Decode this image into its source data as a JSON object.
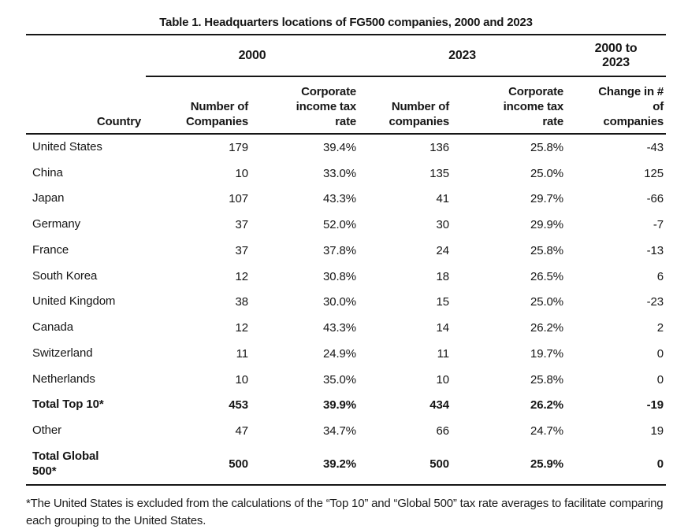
{
  "title": "Table 1. Headquarters locations of FG500 companies, 2000 and 2023",
  "table": {
    "year_groups": [
      {
        "label": "2000"
      },
      {
        "label": "2023"
      },
      {
        "label": "2000 to\n2023"
      }
    ],
    "columns": [
      "Country",
      "Number of\nCompanies",
      "Corporate\nincome tax\nrate",
      "Number of\ncompanies",
      "Corporate\nincome tax\nrate",
      "Change in #\nof\ncompanies"
    ],
    "rows": [
      {
        "country": "United States",
        "companies_2000": "179",
        "tax_2000": "39.4%",
        "companies_2023": "136",
        "tax_2023": "25.8%",
        "change": "-43",
        "bold": false
      },
      {
        "country": "China",
        "companies_2000": "10",
        "tax_2000": "33.0%",
        "companies_2023": "135",
        "tax_2023": "25.0%",
        "change": "125",
        "bold": false
      },
      {
        "country": "Japan",
        "companies_2000": "107",
        "tax_2000": "43.3%",
        "companies_2023": "41",
        "tax_2023": "29.7%",
        "change": "-66",
        "bold": false
      },
      {
        "country": "Germany",
        "companies_2000": "37",
        "tax_2000": "52.0%",
        "companies_2023": "30",
        "tax_2023": "29.9%",
        "change": "-7",
        "bold": false
      },
      {
        "country": "France",
        "companies_2000": "37",
        "tax_2000": "37.8%",
        "companies_2023": "24",
        "tax_2023": "25.8%",
        "change": "-13",
        "bold": false
      },
      {
        "country": "South Korea",
        "companies_2000": "12",
        "tax_2000": "30.8%",
        "companies_2023": "18",
        "tax_2023": "26.5%",
        "change": "6",
        "bold": false
      },
      {
        "country": "United Kingdom",
        "companies_2000": "38",
        "tax_2000": "30.0%",
        "companies_2023": "15",
        "tax_2023": "25.0%",
        "change": "-23",
        "bold": false
      },
      {
        "country": "Canada",
        "companies_2000": "12",
        "tax_2000": "43.3%",
        "companies_2023": "14",
        "tax_2023": "26.2%",
        "change": "2",
        "bold": false
      },
      {
        "country": "Switzerland",
        "companies_2000": "11",
        "tax_2000": "24.9%",
        "companies_2023": "11",
        "tax_2023": "19.7%",
        "change": "0",
        "bold": false
      },
      {
        "country": "Netherlands",
        "companies_2000": "10",
        "tax_2000": "35.0%",
        "companies_2023": "10",
        "tax_2023": "25.8%",
        "change": "0",
        "bold": false
      },
      {
        "country": "Total Top 10*",
        "companies_2000": "453",
        "tax_2000": "39.9%",
        "companies_2023": "434",
        "tax_2023": "26.2%",
        "change": "-19",
        "bold": true
      },
      {
        "country": "Other",
        "companies_2000": "47",
        "tax_2000": "34.7%",
        "companies_2023": "66",
        "tax_2023": "24.7%",
        "change": "19",
        "bold": false
      },
      {
        "country": "Total Global\n500*",
        "companies_2000": "500",
        "tax_2000": "39.2%",
        "companies_2023": "500",
        "tax_2023": "25.9%",
        "change": "0",
        "bold": true
      }
    ]
  },
  "footnote": "*The United States is excluded from the calculations of the “Top 10” and “Global 500” tax rate averages to facilitate comparing each grouping to the United States."
}
